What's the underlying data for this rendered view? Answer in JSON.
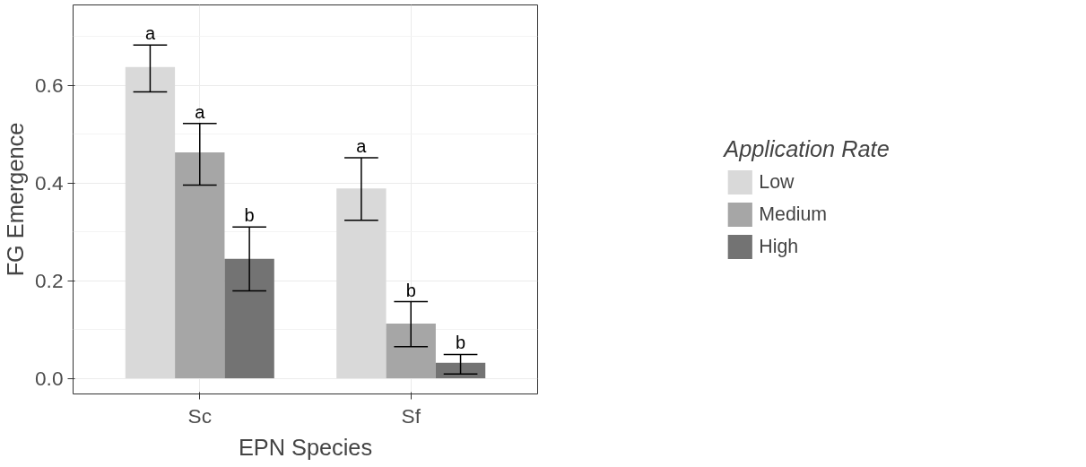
{
  "chart_data": {
    "type": "bar",
    "xlabel": "EPN Species",
    "ylabel": "FG Emergence",
    "legend_title": "Application Rate",
    "categories": [
      "Sc",
      "Sf"
    ],
    "series": [
      {
        "name": "Low",
        "color": "#d9d9d9",
        "values": [
          0.638,
          0.389
        ],
        "errors": [
          [
            0.587,
            0.683
          ],
          [
            0.324,
            0.452
          ]
        ],
        "value_labels": [
          "a",
          "a"
        ]
      },
      {
        "name": "Medium",
        "color": "#a6a6a6",
        "values": [
          0.463,
          0.112
        ],
        "errors": [
          [
            0.396,
            0.522
          ],
          [
            0.065,
            0.157
          ]
        ],
        "value_labels": [
          "a",
          "b"
        ]
      },
      {
        "name": "High",
        "color": "#737373",
        "values": [
          0.245,
          0.032
        ],
        "errors": [
          [
            0.179,
            0.31
          ],
          [
            0.009,
            0.049
          ]
        ],
        "value_labels": [
          "b",
          "b"
        ]
      }
    ],
    "ylim": [
      -0.032,
      0.765
    ],
    "yticks": [
      {
        "value": 0,
        "label": "0.0"
      },
      {
        "value": 0.2,
        "label": "0.2"
      },
      {
        "value": 0.4,
        "label": "0.4"
      },
      {
        "value": 0.6,
        "label": "0.6"
      }
    ],
    "grid": true,
    "legend": "right"
  }
}
